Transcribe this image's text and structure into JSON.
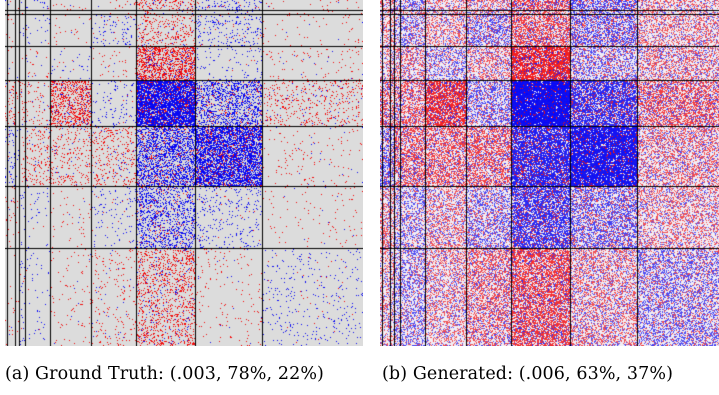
{
  "figures": [
    {
      "id": "ground_truth",
      "caption_label": "(a) Ground Truth: ",
      "caption_values": "(.003, 78%, 22%)",
      "style": "sparse",
      "background_color": "#dcdcdc"
    },
    {
      "id": "generated",
      "caption_label": "(b) Generated: ",
      "caption_values": "(.006, 63%, 37%)",
      "style": "dense",
      "background_color": "#f2eef5"
    }
  ],
  "colors": {
    "positive": "#e00000",
    "negative": "#0000e6",
    "grid_line": "#000000"
  }
}
